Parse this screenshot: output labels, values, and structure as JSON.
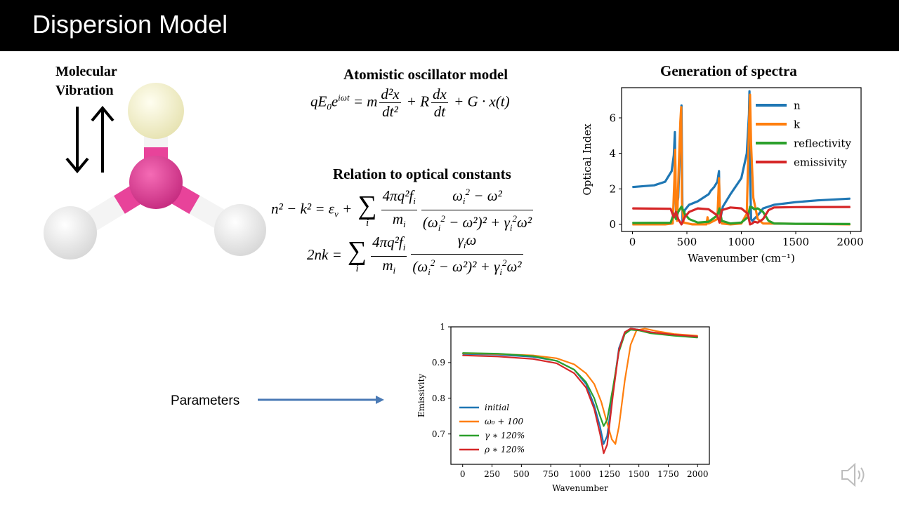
{
  "slide": {
    "title": "Dispersion Model",
    "molecule_label_line1": "Molecular",
    "molecule_label_line2": "Vibration",
    "oscillator_heading": "Atomistic oscillator model",
    "optical_heading": "Relation to optical constants",
    "spectra_heading": "Generation of spectra",
    "parameters_label": "Parameters"
  },
  "equations": {
    "oscillator": {
      "lhs_base": "qE",
      "lhs_sub": "0",
      "lhs_e": "e",
      "lhs_exp": "iωt",
      "eq": " = m",
      "d2x_num": "d²x",
      "d2x_den": "dt²",
      "plus_r": " + R",
      "dx_num": "dx",
      "dx_den": "dt",
      "tail": " + G · x(t)"
    },
    "n2k2": {
      "lhs": "n² − k² = ε",
      "lhs_sub": "v",
      "plus": " + ",
      "sum": "∑",
      "sum_sub": "i",
      "f1_num": "4πq²f",
      "f1_num_sub": "i",
      "f1_den": "m",
      "f1_den_sub": "i",
      "f2_num": "ω",
      "f2_num_sub": "i",
      "f2_num_sup": "2",
      "f2_num_tail": " − ω²",
      "f2_den": "(ω",
      "f2_den_sub": "i",
      "f2_den_sup": "2",
      "f2_den_tail": " − ω²)² + γ",
      "f2_den_sub2": "i",
      "f2_den_sup2": "2",
      "f2_den_end": "ω²"
    },
    "two_nk": {
      "lhs": "2nk = ",
      "sum": "∑",
      "sum_sub": "i",
      "f1_num": "4πq²f",
      "f1_num_sub": "i",
      "f1_den": "m",
      "f1_den_sub": "i",
      "f2_num": "γ",
      "f2_num_sub": "i",
      "f2_num_tail": "ω",
      "f2_den": "(ω",
      "f2_den_sub": "i",
      "f2_den_sup": "2",
      "f2_den_tail": " − ω²)² + γ",
      "f2_den_sub2": "i",
      "f2_den_sup2": "2",
      "f2_den_end": "ω²"
    }
  },
  "colors": {
    "blue": "#1f77b4",
    "orange": "#ff7f0e",
    "green": "#2ca02c",
    "red": "#d62728",
    "arrow": "#4a7ab5",
    "magenta": "#e8439a",
    "yellow_atom": "#f3f0c4",
    "white_atom": "#f4f4f4"
  },
  "icons": {
    "speaker": "speaker-icon",
    "vibration": "double-arrow-icon"
  },
  "chart_data": [
    {
      "type": "line",
      "title": "",
      "xlabel": "Wavenumber (cm⁻¹)",
      "ylabel": "Optical Index",
      "xlim": [
        -100,
        2100
      ],
      "ylim": [
        -0.4,
        7.7
      ],
      "xticks": [
        0,
        500,
        1000,
        1500,
        2000
      ],
      "yticks": [
        0,
        2,
        4,
        6
      ],
      "legend": "top-right",
      "grid": false,
      "series": [
        {
          "name": "n",
          "color": "#1f77b4",
          "x": [
            0,
            200,
            300,
            360,
            380,
            390,
            395,
            400,
            420,
            430,
            440,
            450,
            460,
            480,
            520,
            600,
            700,
            720,
            750,
            780,
            795,
            800,
            810,
            830,
            900,
            1000,
            1050,
            1070,
            1075,
            1080,
            1090,
            1100,
            1150,
            1200,
            1300,
            1500,
            1700,
            2000
          ],
          "y": [
            2.1,
            2.2,
            2.4,
            3.0,
            3.9,
            5.2,
            2.5,
            0.7,
            1.5,
            3.3,
            5.4,
            6.7,
            0.1,
            0.8,
            1.1,
            1.3,
            1.7,
            1.9,
            2.1,
            2.4,
            3.0,
            0.9,
            0.4,
            1.0,
            1.7,
            2.6,
            4.0,
            6.2,
            7.5,
            3.0,
            0.3,
            0.2,
            0.5,
            0.9,
            1.1,
            1.25,
            1.35,
            1.45
          ]
        },
        {
          "name": "k",
          "color": "#ff7f0e",
          "x": [
            0,
            300,
            370,
            385,
            392,
            400,
            410,
            425,
            440,
            448,
            455,
            470,
            550,
            680,
            690,
            700,
            780,
            795,
            805,
            820,
            900,
            1000,
            1050,
            1070,
            1080,
            1090,
            1110,
            1150,
            1200,
            2000
          ],
          "y": [
            0.0,
            0.0,
            0.05,
            2.5,
            4.2,
            1.0,
            0.2,
            3.2,
            5.8,
            6.6,
            1.2,
            0.1,
            0.0,
            0.0,
            0.4,
            0.05,
            0.3,
            2.6,
            0.5,
            0.05,
            0.0,
            0.05,
            0.6,
            5.5,
            7.3,
            4.5,
            1.5,
            0.3,
            0.05,
            0.0
          ]
        },
        {
          "name": "reflectivity",
          "color": "#2ca02c",
          "x": [
            0,
            350,
            380,
            400,
            420,
            450,
            480,
            520,
            600,
            700,
            780,
            800,
            820,
            900,
            1000,
            1060,
            1080,
            1100,
            1120,
            1150,
            1200,
            1250,
            1300,
            1500,
            2000
          ],
          "y": [
            0.08,
            0.09,
            0.6,
            0.3,
            0.7,
            1.0,
            0.6,
            0.3,
            0.1,
            0.15,
            0.5,
            0.9,
            0.2,
            0.05,
            0.1,
            0.4,
            1.0,
            0.95,
            0.85,
            0.9,
            0.7,
            0.2,
            0.05,
            0.03,
            0.02
          ]
        },
        {
          "name": "emissivity",
          "color": "#d62728",
          "x": [
            0,
            350,
            380,
            400,
            420,
            450,
            480,
            520,
            600,
            700,
            780,
            800,
            820,
            900,
            1000,
            1060,
            1080,
            1100,
            1120,
            1150,
            1200,
            1250,
            1300,
            1500,
            2000
          ],
          "y": [
            0.9,
            0.88,
            0.4,
            0.7,
            0.3,
            0.0,
            0.4,
            0.7,
            0.9,
            0.85,
            0.5,
            0.1,
            0.8,
            0.95,
            0.9,
            0.6,
            0.0,
            0.05,
            0.15,
            0.1,
            0.3,
            0.8,
            0.95,
            0.97,
            0.98
          ]
        }
      ]
    },
    {
      "type": "line",
      "title": "",
      "xlabel": "Wavenumber",
      "ylabel": "Emissivity",
      "xlim": [
        -100,
        2100
      ],
      "ylim": [
        0.615,
        1.0
      ],
      "xticks": [
        0,
        250,
        500,
        750,
        1000,
        1250,
        1500,
        1750,
        2000
      ],
      "yticks": [
        0.7,
        0.8,
        0.9,
        1.0
      ],
      "legend": "bottom-left",
      "grid": false,
      "series": [
        {
          "name": "initial",
          "color": "#1f77b4",
          "x": [
            0,
            300,
            600,
            800,
            950,
            1050,
            1120,
            1170,
            1200,
            1230,
            1280,
            1330,
            1380,
            1430,
            1500,
            1600,
            1800,
            2000
          ],
          "y": [
            0.924,
            0.922,
            0.916,
            0.905,
            0.88,
            0.84,
            0.78,
            0.72,
            0.672,
            0.695,
            0.82,
            0.94,
            0.985,
            0.995,
            0.992,
            0.985,
            0.977,
            0.972
          ]
        },
        {
          "name": "ω₀ + 100",
          "color": "#ff7f0e",
          "x": [
            0,
            300,
            600,
            800,
            950,
            1050,
            1120,
            1180,
            1230,
            1270,
            1300,
            1330,
            1380,
            1430,
            1480,
            1550,
            1650,
            1800,
            2000
          ],
          "y": [
            0.926,
            0.924,
            0.92,
            0.912,
            0.895,
            0.87,
            0.84,
            0.79,
            0.73,
            0.685,
            0.672,
            0.72,
            0.85,
            0.95,
            0.99,
            0.995,
            0.988,
            0.98,
            0.975
          ]
        },
        {
          "name": "γ ∗ 120%",
          "color": "#2ca02c",
          "x": [
            0,
            300,
            600,
            800,
            950,
            1050,
            1120,
            1170,
            1200,
            1230,
            1280,
            1330,
            1380,
            1430,
            1500,
            1600,
            1800,
            2000
          ],
          "y": [
            0.927,
            0.925,
            0.918,
            0.905,
            0.88,
            0.845,
            0.8,
            0.75,
            0.722,
            0.74,
            0.83,
            0.93,
            0.98,
            0.992,
            0.99,
            0.982,
            0.975,
            0.97
          ]
        },
        {
          "name": "ρ ∗ 120%",
          "color": "#d62728",
          "x": [
            0,
            300,
            600,
            800,
            950,
            1050,
            1120,
            1170,
            1200,
            1230,
            1280,
            1330,
            1380,
            1430,
            1500,
            1600,
            1800,
            2000
          ],
          "y": [
            0.92,
            0.917,
            0.91,
            0.898,
            0.87,
            0.83,
            0.77,
            0.7,
            0.646,
            0.67,
            0.81,
            0.935,
            0.985,
            0.995,
            0.992,
            0.985,
            0.978,
            0.973
          ]
        }
      ]
    }
  ]
}
